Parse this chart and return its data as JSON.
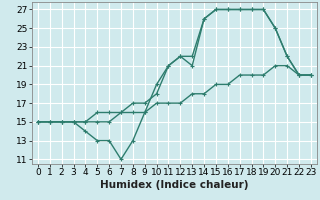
{
  "xlabel": "Humidex (Indice chaleur)",
  "bg_color": "#d0eaed",
  "grid_color": "#ffffff",
  "line_color": "#2e7d6e",
  "xlim": [
    -0.5,
    23.5
  ],
  "ylim": [
    10.5,
    27.8
  ],
  "xticks": [
    0,
    1,
    2,
    3,
    4,
    5,
    6,
    7,
    8,
    9,
    10,
    11,
    12,
    13,
    14,
    15,
    16,
    17,
    18,
    19,
    20,
    21,
    22,
    23
  ],
  "yticks": [
    11,
    13,
    15,
    17,
    19,
    21,
    23,
    25,
    27
  ],
  "line1_x": [
    0,
    1,
    2,
    3,
    4,
    5,
    6,
    7,
    8,
    9,
    10,
    11,
    12,
    13,
    14,
    15,
    16,
    17,
    18,
    19,
    20,
    21,
    22,
    23
  ],
  "line1_y": [
    15,
    15,
    15,
    15,
    14,
    13,
    13,
    11,
    13,
    16,
    19,
    21,
    22,
    21,
    26,
    27,
    27,
    27,
    27,
    27,
    25,
    22,
    20,
    20
  ],
  "line2_x": [
    0,
    1,
    2,
    3,
    4,
    5,
    6,
    7,
    8,
    9,
    10,
    11,
    12,
    13,
    14,
    15,
    16,
    17,
    18,
    19,
    20,
    21,
    22,
    23
  ],
  "line2_y": [
    15,
    15,
    15,
    15,
    15,
    15,
    15,
    16,
    16,
    16,
    17,
    17,
    17,
    18,
    18,
    19,
    19,
    20,
    20,
    20,
    21,
    21,
    20,
    20
  ],
  "line3_x": [
    0,
    1,
    2,
    3,
    4,
    5,
    6,
    7,
    8,
    9,
    10,
    11,
    12,
    13,
    14,
    15,
    16,
    17,
    18,
    19,
    20,
    21,
    22,
    23
  ],
  "line3_y": [
    15,
    15,
    15,
    15,
    15,
    16,
    16,
    16,
    17,
    17,
    18,
    21,
    22,
    22,
    26,
    27,
    27,
    27,
    27,
    27,
    25,
    22,
    20,
    20
  ],
  "marker": "+",
  "markersize": 3,
  "linewidth": 1.0,
  "xlabel_fontsize": 7.5,
  "tick_fontsize": 6.5
}
